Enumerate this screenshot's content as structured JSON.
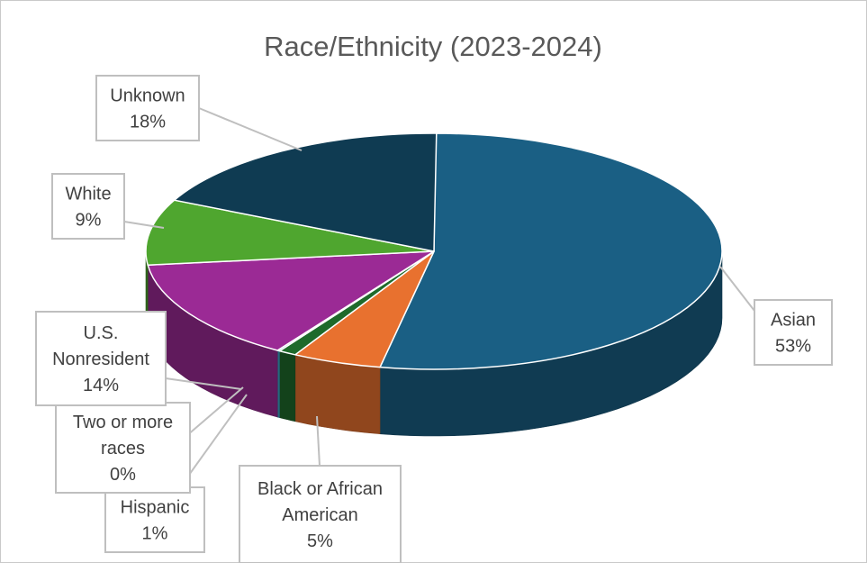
{
  "chart_data": {
    "type": "pie",
    "title": "Race/Ethnicity (2023-2024)",
    "categories": [
      "Asian",
      "Black or African American",
      "Hispanic",
      "Two or more races",
      "U.S. Nonresident",
      "White",
      "Unknown"
    ],
    "values": [
      53,
      5,
      1,
      0,
      14,
      9,
      18
    ],
    "value_labels": [
      "53%",
      "5%",
      "1%",
      "0%",
      "14%",
      "9%",
      "18%"
    ],
    "label_lines": [
      [
        "Asian",
        "53%"
      ],
      [
        "Black or African",
        "American",
        "5%"
      ],
      [
        "Hispanic",
        "1%"
      ],
      [
        "Two or more",
        "races",
        "0%"
      ],
      [
        "U.S.",
        "Nonresident",
        "14%"
      ],
      [
        "White",
        "9%"
      ],
      [
        "Unknown",
        "18%"
      ]
    ],
    "colors": [
      "#1a5f84",
      "#e8712f",
      "#1e6a2b",
      "#3ea8c9",
      "#9b2a95",
      "#4fa62f",
      "#0f3b52"
    ],
    "legend": "none",
    "label_style": "callout"
  }
}
